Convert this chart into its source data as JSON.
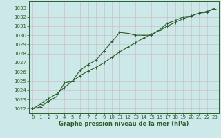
{
  "x": [
    0,
    1,
    2,
    3,
    4,
    5,
    6,
    7,
    8,
    9,
    10,
    11,
    12,
    13,
    14,
    15,
    16,
    17,
    18,
    19,
    20,
    21,
    22,
    23
  ],
  "series1": [
    1022.0,
    1022.2,
    1022.8,
    1023.3,
    1024.8,
    1025.0,
    1026.2,
    1026.8,
    1027.3,
    1028.3,
    1029.3,
    1030.3,
    1030.2,
    1030.0,
    1030.0,
    1030.0,
    1030.6,
    1031.3,
    1031.6,
    1032.0,
    1032.1,
    1032.4,
    1032.5,
    1033.0
  ],
  "series2": [
    1022.0,
    1022.5,
    1023.1,
    1023.6,
    1024.3,
    1025.0,
    1025.6,
    1026.1,
    1026.5,
    1027.0,
    1027.6,
    1028.2,
    1028.7,
    1029.2,
    1029.7,
    1030.1,
    1030.5,
    1031.0,
    1031.4,
    1031.8,
    1032.1,
    1032.4,
    1032.6,
    1032.9
  ],
  "line_color": "#2a5e2a",
  "bg_color": "#cde8e8",
  "grid_color": "#c8b8b8",
  "border_color": "#2a5e2a",
  "xlabel": "Graphe pression niveau de la mer (hPa)",
  "xlabel_color": "#2a5e2a",
  "ylabel_values": [
    1022,
    1023,
    1024,
    1025,
    1026,
    1027,
    1028,
    1029,
    1030,
    1031,
    1032,
    1033
  ],
  "ylim": [
    1021.5,
    1033.7
  ],
  "xlim": [
    -0.5,
    23.5
  ],
  "tick_color": "#2a5e2a",
  "font_color": "#2a5e2a",
  "tick_fontsize": 5.0,
  "xlabel_fontsize": 6.0
}
